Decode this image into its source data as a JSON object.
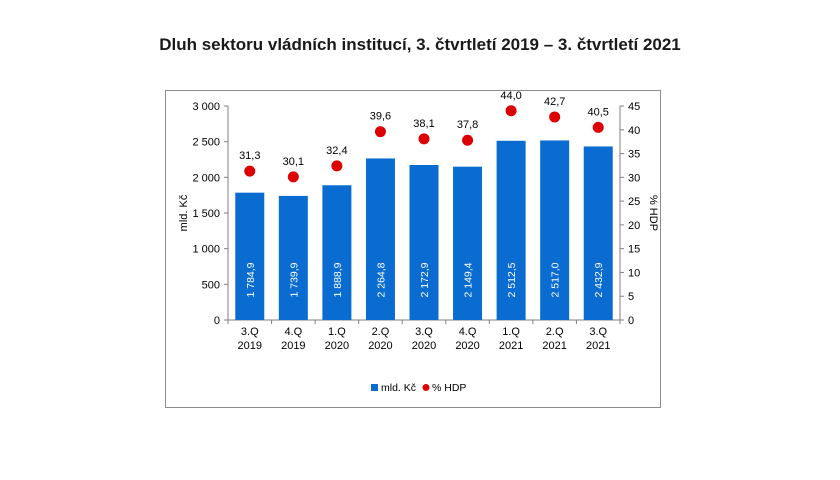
{
  "title": "Dluh sektoru vládních institucí, 3. čtvrtletí 2019 – 3. čtvrtletí 2021",
  "colors": {
    "bar": "#0a6bd1",
    "marker": "#dd0000",
    "axis": "#808080",
    "text": "#000000"
  },
  "chart_data": {
    "type": "bar",
    "categories": [
      [
        "3.Q",
        "2019"
      ],
      [
        "4.Q",
        "2019"
      ],
      [
        "1.Q",
        "2020"
      ],
      [
        "2.Q",
        "2020"
      ],
      [
        "3.Q",
        "2020"
      ],
      [
        "4.Q",
        "2020"
      ],
      [
        "1.Q",
        "2021"
      ],
      [
        "2.Q",
        "2021"
      ],
      [
        "3.Q",
        "2021"
      ]
    ],
    "series": [
      {
        "name": "mld. Kč",
        "axis": "left",
        "kind": "bar",
        "values": [
          1784.9,
          1739.9,
          1888.9,
          2264.8,
          2172.9,
          2149.4,
          2512.5,
          2517.0,
          2432.9
        ],
        "labels": [
          "1 784,9",
          "1 739,9",
          "1 888,9",
          "2 264,8",
          "2 172,9",
          "2 149,4",
          "2 512,5",
          "2 517,0",
          "2 432,9"
        ]
      },
      {
        "name": "% HDP",
        "axis": "right",
        "kind": "marker",
        "values": [
          31.3,
          30.1,
          32.4,
          39.6,
          38.1,
          37.8,
          44.0,
          42.7,
          40.5
        ],
        "labels": [
          "31,3",
          "30,1",
          "32,4",
          "39,6",
          "38,1",
          "37,8",
          "44,0",
          "42,7",
          "40,5"
        ]
      }
    ],
    "ylabel": "mld. Kč",
    "y2label": "% HDP",
    "ylim": [
      0,
      3000
    ],
    "y2lim": [
      0,
      45
    ],
    "yticks": [
      "0",
      "500",
      "1 000",
      "1 500",
      "2 000",
      "2 500",
      "3 000"
    ],
    "y2ticks": [
      "0",
      "5",
      "10",
      "15",
      "20",
      "25",
      "30",
      "35",
      "40",
      "45"
    ],
    "legend": {
      "placement": "bottom",
      "items": [
        "mld. Kč",
        "% HDP"
      ]
    },
    "grid": false
  }
}
